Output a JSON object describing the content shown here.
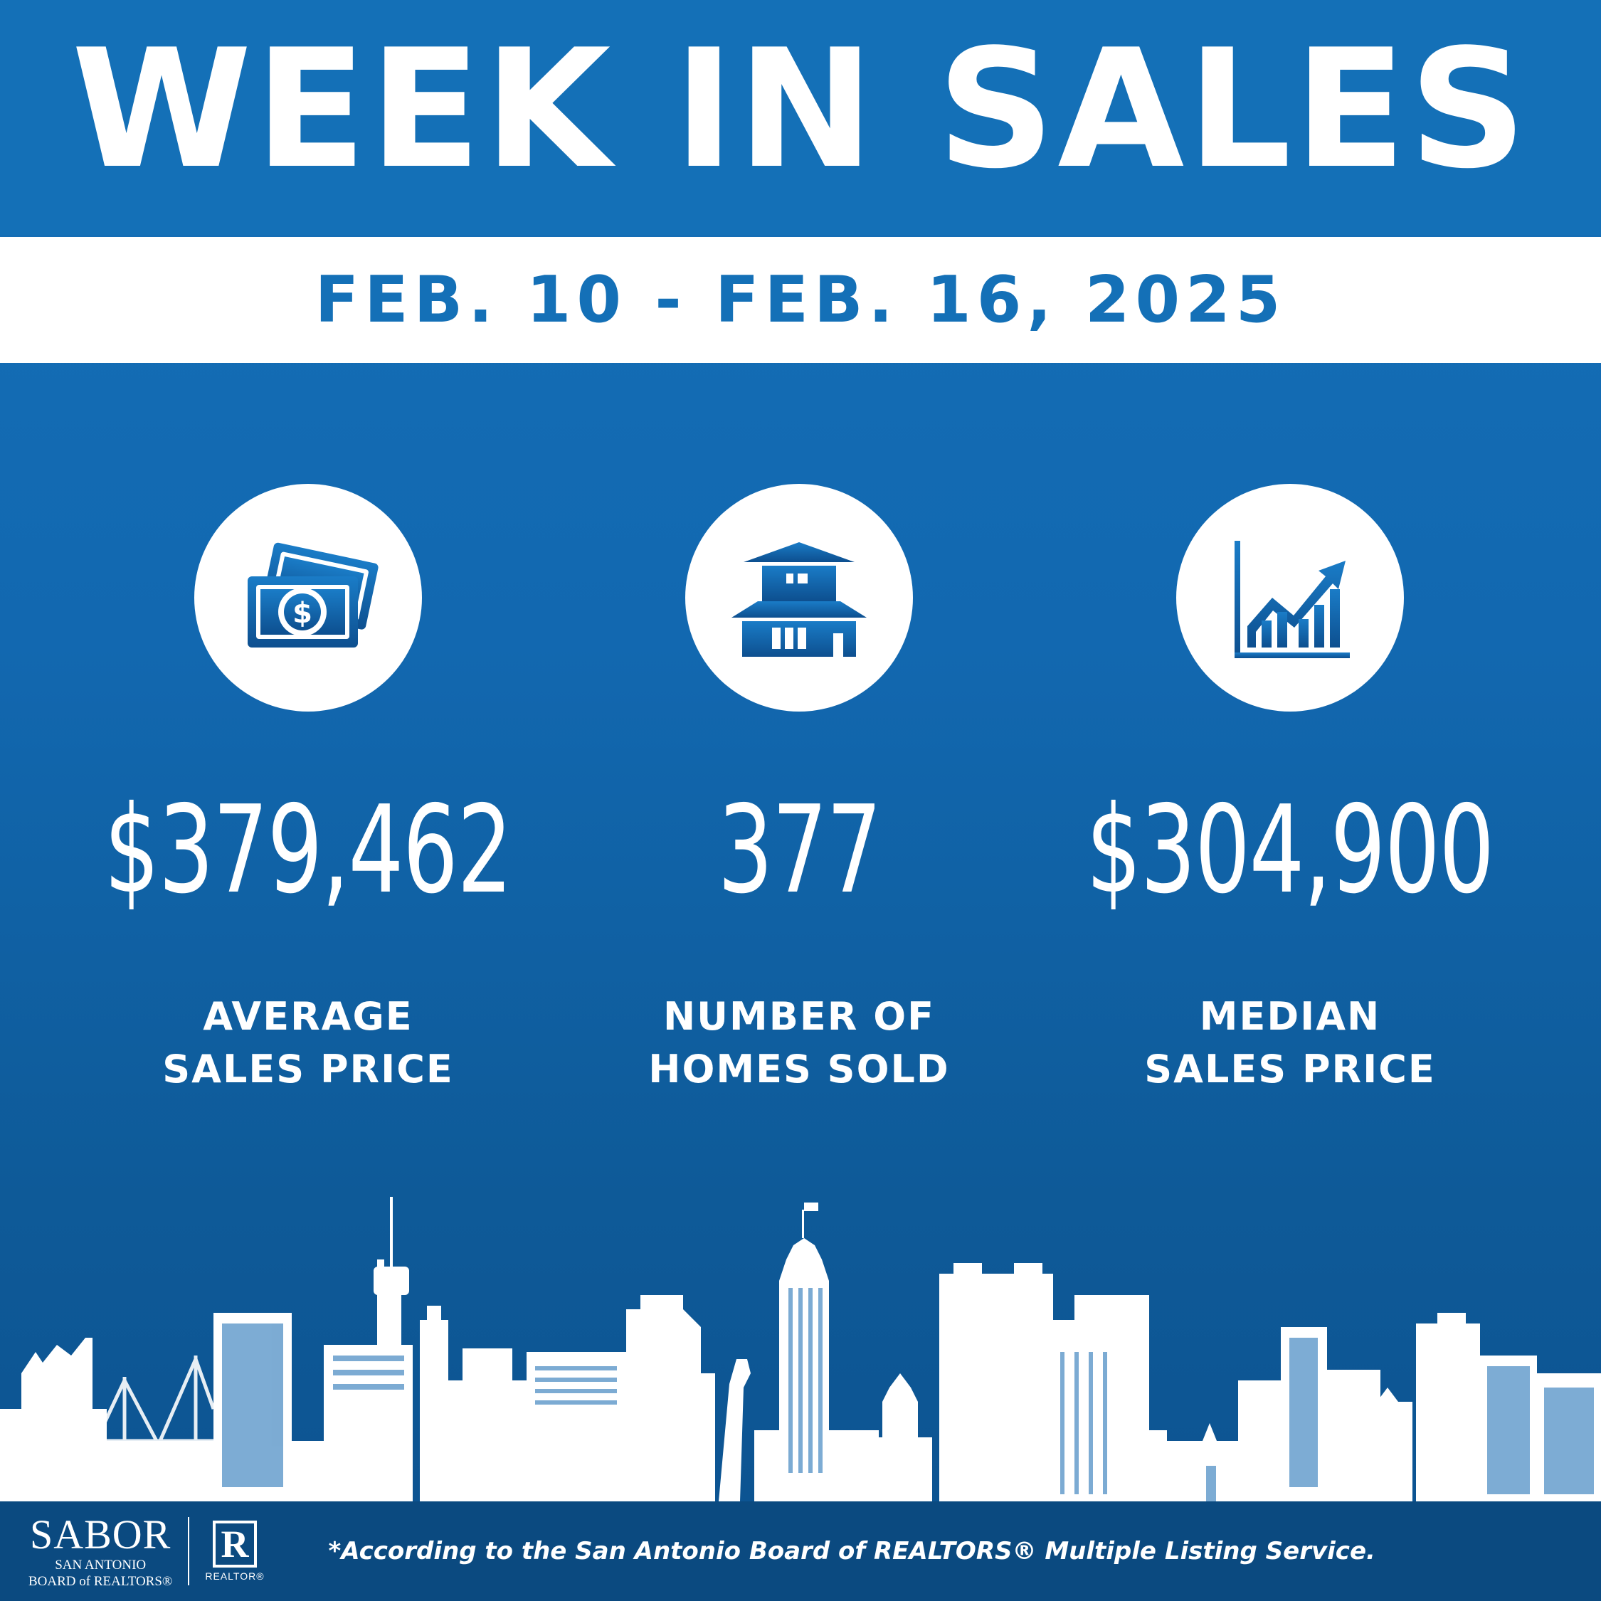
{
  "header": {
    "title": "WEEK IN SALES",
    "date_range": "FEB. 10 - FEB. 16, 2025"
  },
  "stats": [
    {
      "icon": "money-icon",
      "value": "$379,462",
      "label_line1": "AVERAGE",
      "label_line2": "SALES PRICE"
    },
    {
      "icon": "house-icon",
      "value": "377",
      "label_line1": "NUMBER OF",
      "label_line2": "HOMES SOLD"
    },
    {
      "icon": "growth-chart-icon",
      "value": "$304,900",
      "label_line1": "MEDIAN",
      "label_line2": "SALES PRICE"
    }
  ],
  "footer": {
    "logo_name": "SABOR",
    "logo_line1": "SAN ANTONIO",
    "logo_line2": "BOARD of REALTORS®",
    "realtor_mark": "R",
    "realtor_word": "REALTOR®",
    "footnote": "*According to the San Antonio Board of REALTORS® Multiple Listing Service."
  },
  "colors": {
    "brand_blue": "#1470b7",
    "footer_navy": "#0b4a80",
    "white": "#ffffff"
  }
}
